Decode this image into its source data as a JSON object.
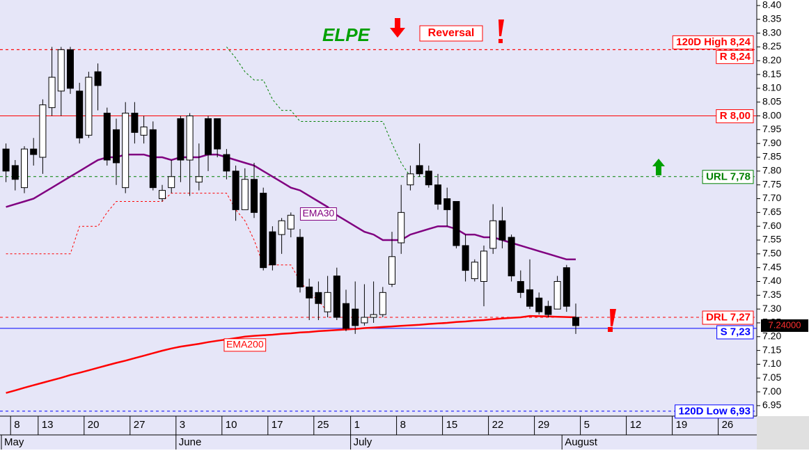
{
  "chart_data": {
    "type": "candlestick",
    "title": "ELPE",
    "annotation": "Reversal",
    "last_price_label": "7.24000",
    "categories": [
      null,
      "8",
      null,
      null,
      "13",
      null,
      null,
      null,
      null,
      "20",
      null,
      null,
      null,
      null,
      "27",
      null,
      null,
      null,
      null,
      "3",
      null,
      null,
      null,
      null,
      "10",
      null,
      null,
      null,
      null,
      "17",
      null,
      null,
      null,
      null,
      "25",
      null,
      null,
      null,
      "1",
      null,
      null,
      null,
      null,
      "8",
      null,
      null,
      null,
      null,
      "15",
      null,
      null,
      null,
      null,
      "22",
      null,
      null,
      null,
      null,
      "29",
      null,
      null,
      null,
      null,
      "5",
      null,
      null,
      null,
      null,
      "12",
      null,
      null,
      null,
      null,
      "19",
      null,
      null,
      null,
      null,
      "26",
      null,
      null,
      null
    ],
    "month_labels": [
      "May",
      null,
      null,
      null,
      null,
      null,
      null,
      null,
      null,
      null,
      null,
      null,
      null,
      null,
      null,
      null,
      null,
      null,
      null,
      "June",
      null,
      null,
      null,
      null,
      null,
      null,
      null,
      null,
      null,
      null,
      null,
      null,
      null,
      null,
      null,
      null,
      null,
      null,
      "July",
      null,
      null,
      null,
      null,
      null,
      null,
      null,
      null,
      null,
      null,
      null,
      null,
      null,
      null,
      null,
      null,
      null,
      null,
      null,
      null,
      null,
      null,
      "August",
      null,
      null,
      null,
      null,
      null,
      null,
      null,
      null,
      null,
      null,
      null,
      null,
      null,
      null,
      null,
      null,
      null,
      null,
      null,
      null
    ],
    "open": [
      7.88,
      7.82,
      7.74,
      7.88,
      7.85,
      8.03,
      8.09,
      8.24,
      8.09,
      7.93,
      8.16,
      8.01,
      7.95,
      7.74,
      8.01,
      7.93,
      7.95,
      7.7,
      7.74,
      7.99,
      7.84,
      7.76,
      7.99,
      7.99,
      7.86,
      7.8,
      7.66,
      7.77,
      7.72,
      7.58,
      7.57,
      7.59,
      7.56,
      7.38,
      7.36,
      7.29,
      7.42,
      7.32,
      7.3,
      7.25,
      7.27,
      7.28,
      7.39,
      7.54,
      7.75,
      7.82,
      7.8,
      7.75,
      7.7,
      7.69,
      7.53,
      7.41,
      7.4,
      7.52,
      7.62,
      7.56,
      7.4,
      7.37,
      7.34,
      7.31,
      7.3,
      7.45,
      7.27,
      null,
      null,
      null,
      null,
      null,
      null,
      null,
      null,
      null,
      null,
      null,
      null,
      null,
      null,
      null,
      null,
      null,
      null,
      null
    ],
    "high": [
      7.9,
      7.84,
      7.89,
      7.92,
      8.06,
      8.25,
      8.25,
      8.25,
      8.12,
      8.16,
      8.19,
      8.03,
      7.99,
      8.05,
      8.05,
      8.0,
      7.98,
      7.75,
      7.84,
      8.0,
      8.01,
      7.9,
      8.0,
      7.99,
      7.88,
      7.82,
      7.81,
      7.83,
      7.74,
      7.6,
      7.63,
      7.65,
      7.59,
      7.41,
      7.4,
      7.42,
      7.45,
      7.37,
      7.4,
      7.39,
      7.4,
      7.38,
      7.58,
      7.75,
      7.82,
      7.9,
      7.82,
      7.79,
      7.74,
      7.69,
      7.57,
      7.48,
      7.53,
      7.68,
      7.67,
      7.57,
      7.44,
      7.48,
      7.36,
      7.33,
      7.42,
      7.46,
      7.32,
      null,
      null,
      null,
      null,
      null,
      null,
      null,
      null,
      null,
      null,
      null,
      null,
      null,
      null,
      null,
      null,
      null,
      null,
      null
    ],
    "low": [
      7.76,
      7.73,
      7.72,
      7.82,
      7.79,
      8.0,
      8.0,
      8.08,
      7.9,
      7.92,
      8.02,
      7.82,
      7.75,
      7.72,
      7.9,
      7.9,
      7.73,
      7.69,
      7.72,
      7.76,
      7.71,
      7.73,
      7.8,
      7.85,
      7.77,
      7.62,
      7.66,
      7.63,
      7.44,
      7.44,
      7.5,
      7.56,
      7.36,
      7.26,
      7.26,
      7.27,
      7.26,
      7.22,
      7.21,
      7.24,
      7.25,
      7.27,
      7.38,
      7.5,
      7.73,
      7.78,
      7.74,
      7.66,
      7.6,
      7.52,
      7.4,
      7.4,
      7.31,
      7.5,
      7.52,
      7.4,
      7.34,
      7.3,
      7.28,
      7.27,
      7.3,
      7.29,
      7.21,
      null,
      null,
      null,
      null,
      null,
      null,
      null,
      null,
      null,
      null,
      null,
      null,
      null,
      null,
      null,
      null,
      null,
      null,
      null
    ],
    "close": [
      7.8,
      7.77,
      7.88,
      7.86,
      8.04,
      8.14,
      8.24,
      8.1,
      7.92,
      8.14,
      8.11,
      7.84,
      7.83,
      8.01,
      7.94,
      7.96,
      7.74,
      7.73,
      7.78,
      7.84,
      8.0,
      7.78,
      7.86,
      7.88,
      7.8,
      7.66,
      7.77,
      7.65,
      7.45,
      7.46,
      7.62,
      7.64,
      7.38,
      7.34,
      7.32,
      7.36,
      7.27,
      7.23,
      7.24,
      7.27,
      7.28,
      7.36,
      7.49,
      7.65,
      7.79,
      7.79,
      7.75,
      7.68,
      7.66,
      7.53,
      7.44,
      7.47,
      7.51,
      7.62,
      7.55,
      7.42,
      7.36,
      7.31,
      7.29,
      7.28,
      7.4,
      7.31,
      7.24,
      null,
      null,
      null,
      null,
      null,
      null,
      null,
      null,
      null,
      null,
      null,
      null,
      null,
      null,
      null,
      null,
      null,
      null,
      null
    ],
    "rising_color": "#ffffff",
    "falling_color": "#000000",
    "series": [
      {
        "name": "EMA30",
        "color": "#800080",
        "width": 2.5,
        "dash": "none",
        "values": [
          7.67,
          7.68,
          7.69,
          7.7,
          7.72,
          7.74,
          7.76,
          7.78,
          7.8,
          7.82,
          7.84,
          7.85,
          7.85,
          7.86,
          7.86,
          7.86,
          7.85,
          7.85,
          7.84,
          7.85,
          7.85,
          7.85,
          7.86,
          7.86,
          7.85,
          7.84,
          7.83,
          7.82,
          7.8,
          7.78,
          7.76,
          7.74,
          7.73,
          7.71,
          7.69,
          7.67,
          7.64,
          7.62,
          7.6,
          7.58,
          7.57,
          7.55,
          7.55,
          7.55,
          7.57,
          7.58,
          7.59,
          7.6,
          7.6,
          7.59,
          7.57,
          7.57,
          7.56,
          7.56,
          7.55,
          7.54,
          7.53,
          7.52,
          7.51,
          7.5,
          7.49,
          7.48,
          7.48,
          null,
          null,
          null,
          null,
          null,
          null,
          null,
          null,
          null,
          null,
          null,
          null,
          null,
          null,
          null,
          null,
          null,
          null,
          null
        ]
      },
      {
        "name": "EMA200",
        "color": "#ff0000",
        "width": 2.5,
        "dash": "none",
        "values": [
          6.996,
          7.005,
          7.015,
          7.024,
          7.033,
          7.042,
          7.051,
          7.061,
          7.069,
          7.078,
          7.087,
          7.096,
          7.105,
          7.113,
          7.122,
          7.131,
          7.14,
          7.149,
          7.157,
          7.164,
          7.169,
          7.174,
          7.18,
          7.185,
          7.19,
          7.195,
          7.2,
          7.203,
          7.205,
          7.207,
          7.21,
          7.212,
          7.215,
          7.217,
          7.22,
          7.222,
          7.224,
          7.226,
          7.228,
          7.231,
          7.233,
          7.235,
          7.237,
          7.239,
          7.241,
          7.243,
          7.246,
          7.248,
          7.25,
          7.253,
          7.255,
          7.258,
          7.26,
          7.263,
          7.266,
          7.268,
          7.27,
          7.275,
          7.274,
          7.273,
          7.272,
          7.271,
          7.27,
          null,
          null,
          null,
          null,
          null,
          null,
          null,
          null,
          null,
          null,
          null,
          null,
          null,
          null,
          null,
          null,
          null,
          null,
          null
        ]
      },
      {
        "color": "#008000",
        "width": 1,
        "dash": "3 3",
        "values": [
          null,
          null,
          null,
          null,
          null,
          null,
          null,
          null,
          null,
          null,
          null,
          null,
          null,
          null,
          null,
          null,
          null,
          null,
          null,
          null,
          null,
          null,
          null,
          null,
          8.25,
          8.21,
          8.16,
          8.13,
          8.13,
          8.06,
          8.02,
          8.02,
          7.98,
          7.98,
          7.98,
          7.98,
          7.98,
          7.98,
          7.98,
          7.98,
          7.98,
          7.98,
          7.9,
          7.83,
          7.78,
          null,
          null,
          null,
          null,
          null,
          null,
          null,
          null,
          null,
          null,
          null,
          null,
          null,
          null,
          null,
          null,
          null,
          null,
          null,
          null,
          null,
          null,
          null,
          null,
          null,
          null,
          null,
          null,
          null,
          null,
          null,
          null,
          null,
          null,
          null,
          null,
          null
        ]
      },
      {
        "color": "#ff0000",
        "width": 1,
        "dash": "3 3",
        "values": [
          7.5,
          7.5,
          7.5,
          7.5,
          7.5,
          7.5,
          7.5,
          7.5,
          7.6,
          7.6,
          7.6,
          7.65,
          7.69,
          7.69,
          7.69,
          7.69,
          7.69,
          7.69,
          7.72,
          7.72,
          7.72,
          7.72,
          7.72,
          7.72,
          7.72,
          7.66,
          7.62,
          7.55,
          7.46,
          7.46,
          7.46,
          7.46,
          7.4,
          7.36,
          7.33,
          7.29,
          null,
          null,
          null,
          null,
          null,
          null,
          null,
          null,
          null,
          null,
          null,
          null,
          null,
          null,
          null,
          null,
          null,
          null,
          null,
          null,
          null,
          null,
          null,
          null,
          null,
          null,
          null,
          null,
          null,
          null,
          null,
          null,
          null,
          null,
          null,
          null,
          null,
          null,
          null,
          null,
          null,
          null,
          null,
          null,
          null,
          null
        ]
      }
    ],
    "levels": [
      {
        "label": "120D High 8,24",
        "value": 8.24,
        "color": "#ff0000",
        "dash": "4 4"
      },
      {
        "label": "R 8,24",
        "value": 8.24,
        "color": "#ff0000",
        "dash": "4 4"
      },
      {
        "label": "R 8,00",
        "value": 8.0,
        "color": "#ff0000",
        "dash": "none"
      },
      {
        "label": "URL 7,78",
        "value": 7.78,
        "color": "#008000",
        "dash": "4 4"
      },
      {
        "label": "DRL 7,27",
        "value": 7.27,
        "color": "#ff0000",
        "dash": "4 4"
      },
      {
        "label": "S 7,23",
        "value": 7.23,
        "color": "#0000ff",
        "dash": "none"
      },
      {
        "label": "120D Low 6,93",
        "value": 6.93,
        "color": "#0000ff",
        "dash": "4 4"
      }
    ],
    "ylim": [
      6.912,
      8.42
    ],
    "yticks": [
      {
        "value": 6.95,
        "label": "6.95"
      },
      {
        "value": 7.0,
        "label": "7.00"
      },
      7.05,
      {
        "value": 7.1,
        "label": "7.10"
      },
      7.15,
      {
        "value": 7.2,
        "label": "7.20"
      },
      7.25,
      {
        "value": 7.3,
        "label": "7.30"
      },
      7.35,
      {
        "value": 7.4,
        "label": "7.40"
      },
      7.45,
      {
        "value": 7.5,
        "label": "7.50"
      },
      7.55,
      {
        "value": 7.6,
        "label": "7.60"
      },
      7.65,
      {
        "value": 7.7,
        "label": "7.70"
      },
      7.75,
      {
        "value": 7.8,
        "label": "7.80"
      },
      7.85,
      {
        "value": 7.9,
        "label": "7.90"
      },
      7.95,
      {
        "value": 8.0,
        "label": "8.00"
      },
      8.05,
      {
        "value": 8.1,
        "label": "8.10"
      },
      8.15,
      {
        "value": 8.2,
        "label": "8.20"
      },
      8.25,
      {
        "value": 8.3,
        "label": "8.30"
      },
      8.35,
      {
        "value": 8.4,
        "label": "8.40"
      }
    ]
  }
}
